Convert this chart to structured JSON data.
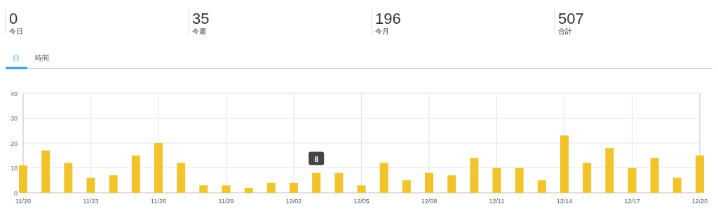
{
  "chart_data": [
    {
      "type": "other",
      "annotations": [
        "0",
        "今日",
        "35",
        "今週",
        "196",
        "今月",
        "507",
        "合計",
        "日",
        "時間"
      ]
    },
    {
      "type": "bar",
      "x": [
        "--11-20",
        "--11-21",
        "--11-22",
        "--11-23",
        "--11-24",
        "--11-25",
        "--11-26",
        "--11-27",
        "--11-28",
        "--11-29",
        "--11-30",
        "--12-01",
        "--12-02",
        "--12-03",
        "--12-04",
        "--12-05",
        "--12-06",
        "--12-07",
        "--12-08",
        "--12-09",
        "--12-10",
        "--12-11",
        "--12-12",
        "--12-13",
        "--12-14",
        "--12-15",
        "--12-16",
        "--12-17",
        "--12-18",
        "--12-19",
        "--12-20"
      ],
      "values": [
        11,
        17,
        12,
        6,
        7,
        15,
        20,
        12,
        3,
        3,
        2,
        4,
        4,
        8,
        8,
        3,
        12,
        5,
        8,
        7,
        14,
        10,
        10,
        5,
        23,
        12,
        18,
        10,
        14,
        6,
        15
      ],
      "color": "#f2c42c",
      "xlim": [
        "--11-20",
        "--12-20"
      ],
      "xticks": [
        {
          "value": "--11-20",
          "label": "11/20"
        },
        {
          "value": "--11-23",
          "label": "11/23"
        },
        {
          "value": "--11-26",
          "label": "11/26"
        },
        {
          "value": "--11-29",
          "label": "11/29"
        },
        {
          "value": "--12-02",
          "label": "12/02"
        },
        {
          "value": "--12-05",
          "label": "12/05"
        },
        {
          "value": "--12-08",
          "label": "12/08"
        },
        {
          "value": "--12-11",
          "label": "12/11"
        },
        {
          "value": "--12-14",
          "label": "12/14"
        },
        {
          "value": "--12-17",
          "label": "12/17"
        },
        {
          "value": "--12-20",
          "label": "12/20"
        }
      ],
      "ylim": [
        0,
        40
      ],
      "yticks": [
        0,
        10,
        20,
        30,
        40
      ],
      "grid": true,
      "annotations": [
        {
          "text": "8",
          "x": "--12-03",
          "y": 8
        }
      ]
    }
  ]
}
